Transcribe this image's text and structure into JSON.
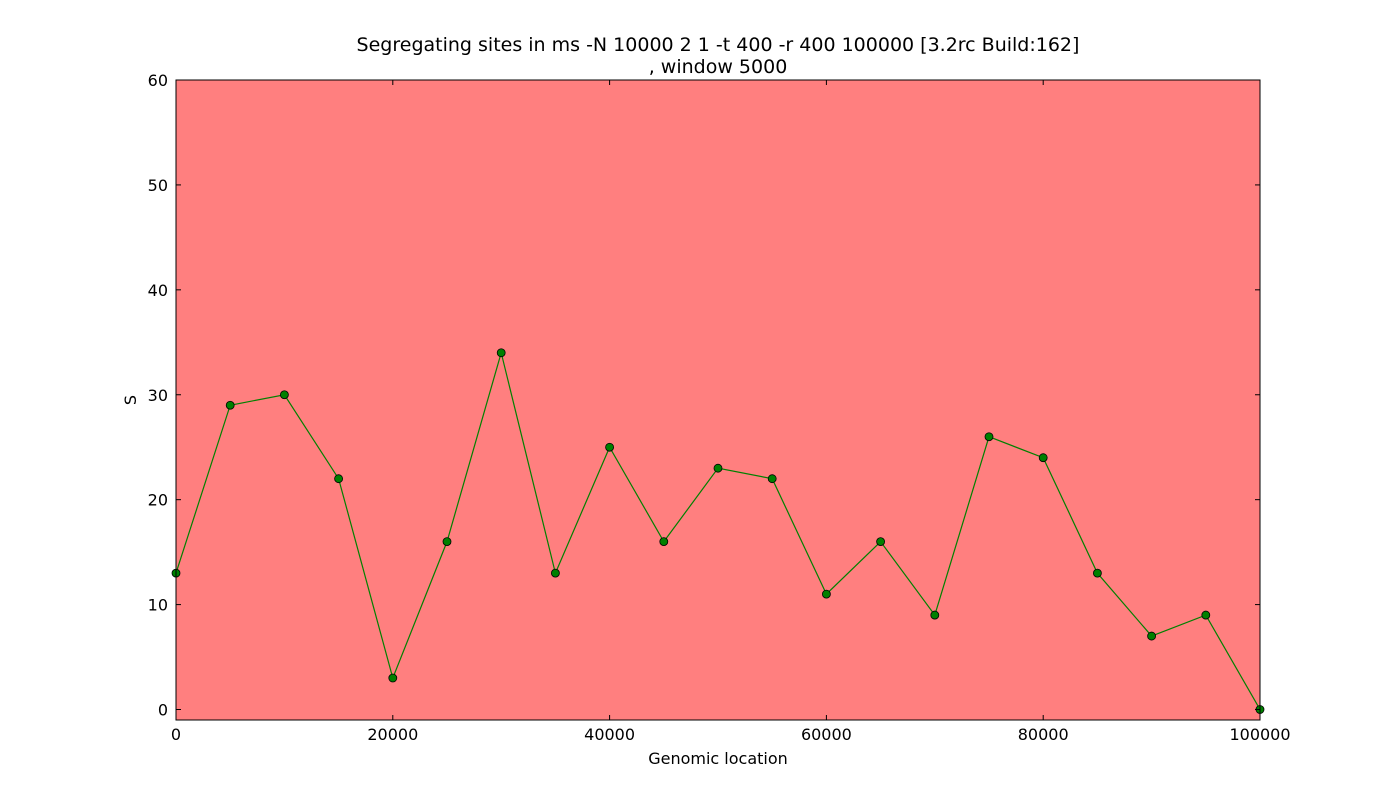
{
  "chart_data": {
    "type": "line",
    "title_line1": "Segregating sites in ms -N 10000 2 1 -t 400 -r 400 100000  [3.2rc Build:162]",
    "title_line2": ", window 5000",
    "xlabel": "Genomic location",
    "ylabel": "S",
    "xlim": [
      0,
      100000
    ],
    "ylim": [
      -1,
      60
    ],
    "xticks": [
      0,
      20000,
      40000,
      60000,
      80000,
      100000
    ],
    "yticks": [
      0,
      10,
      20,
      30,
      40,
      50,
      60
    ],
    "grid": false,
    "background_color": "#ff7f7f",
    "line_color": "#008000",
    "marker_color": "#008000",
    "series": [
      {
        "x": [
          0,
          5000,
          10000,
          15000,
          20000,
          25000,
          30000,
          35000,
          40000,
          45000,
          50000,
          55000,
          60000,
          65000,
          70000,
          75000,
          80000,
          85000,
          90000,
          95000,
          100000
        ],
        "values": [
          13,
          29,
          30,
          22,
          3,
          16,
          34,
          13,
          25,
          16,
          23,
          22,
          11,
          16,
          9,
          26,
          24,
          13,
          7,
          9,
          0
        ]
      }
    ]
  }
}
